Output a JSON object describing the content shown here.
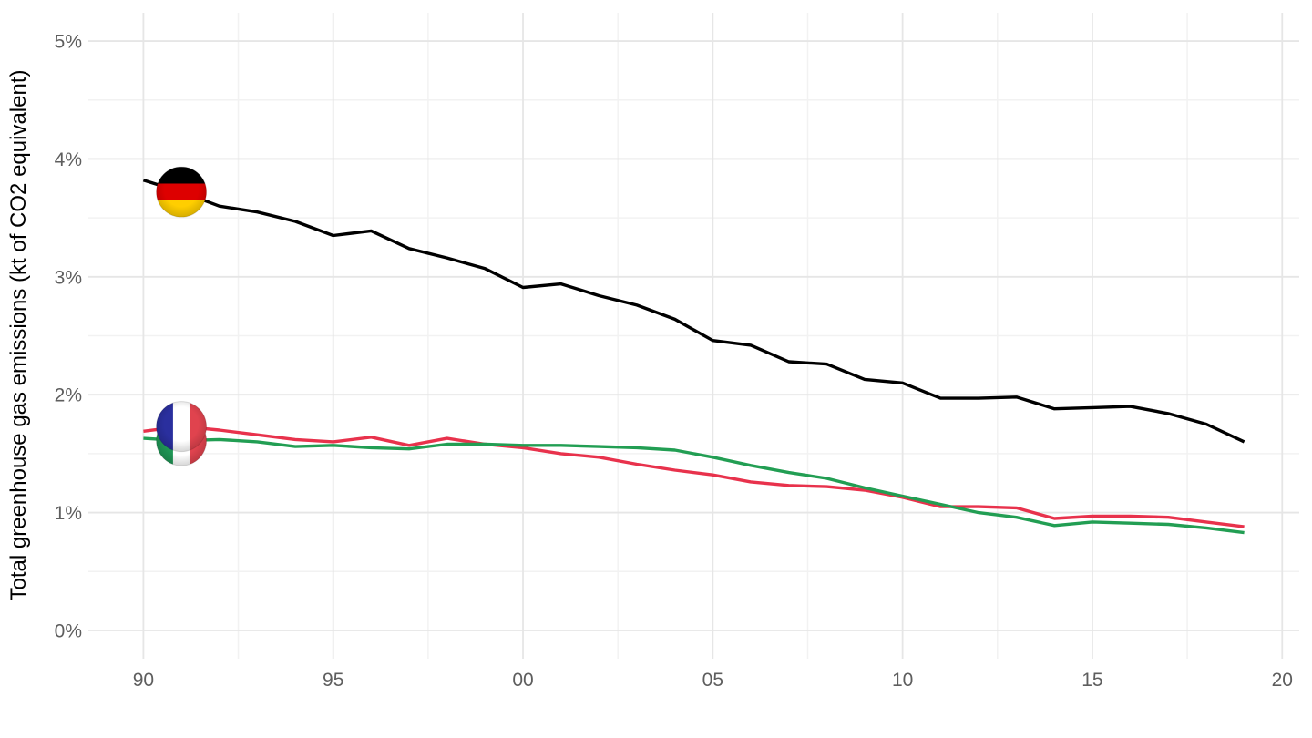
{
  "chart_data": {
    "type": "line",
    "title": "",
    "xlabel": "",
    "ylabel": "Total greenhouse gas emissions (kt of CO2 equivalent)",
    "x": [
      1990,
      1991,
      1992,
      1993,
      1994,
      1995,
      1996,
      1997,
      1998,
      1999,
      2000,
      2001,
      2002,
      2003,
      2004,
      2005,
      2006,
      2007,
      2008,
      2009,
      2010,
      2011,
      2012,
      2013,
      2014,
      2015,
      2016,
      2017,
      2018,
      2019
    ],
    "series": [
      {
        "name": "Germany",
        "color": "#000000",
        "flag": "de",
        "flag_year": 1991,
        "values": [
          3.82,
          3.72,
          3.6,
          3.55,
          3.47,
          3.35,
          3.39,
          3.24,
          3.16,
          3.07,
          2.91,
          2.94,
          2.84,
          2.76,
          2.64,
          2.46,
          2.42,
          2.28,
          2.26,
          2.13,
          2.1,
          1.97,
          1.97,
          1.98,
          1.88,
          1.89,
          1.9,
          1.84,
          1.75,
          1.6
        ]
      },
      {
        "name": "France",
        "color": "#E8324C",
        "flag": "fr",
        "flag_year": 1991,
        "values": [
          1.69,
          1.73,
          1.7,
          1.66,
          1.62,
          1.6,
          1.64,
          1.57,
          1.63,
          1.58,
          1.55,
          1.5,
          1.47,
          1.41,
          1.36,
          1.32,
          1.26,
          1.23,
          1.22,
          1.19,
          1.13,
          1.05,
          1.05,
          1.04,
          0.95,
          0.97,
          0.97,
          0.96,
          0.92,
          0.88
        ]
      },
      {
        "name": "Italy",
        "color": "#229E53",
        "flag": "it",
        "flag_year": 1991,
        "values": [
          1.63,
          1.61,
          1.62,
          1.6,
          1.56,
          1.57,
          1.55,
          1.54,
          1.58,
          1.58,
          1.57,
          1.57,
          1.56,
          1.55,
          1.53,
          1.47,
          1.4,
          1.34,
          1.29,
          1.21,
          1.14,
          1.07,
          1.0,
          0.96,
          0.89,
          0.92,
          0.91,
          0.9,
          0.87,
          0.83
        ]
      }
    ],
    "x_ticks": [
      1990,
      1995,
      2000,
      2005,
      2010,
      2015,
      2020
    ],
    "x_tick_labels": [
      "90",
      "95",
      "00",
      "05",
      "10",
      "15",
      "20"
    ],
    "x_minor_ticks": [
      1992.5,
      1997.5,
      2002.5,
      2007.5,
      2012.5,
      2017.5
    ],
    "y_ticks": [
      0,
      1,
      2,
      3,
      4,
      5
    ],
    "y_tick_labels": [
      "0%",
      "1%",
      "2%",
      "3%",
      "4%",
      "5%"
    ],
    "y_minor_ticks": [
      0.5,
      1.5,
      2.5,
      3.5,
      4.5
    ],
    "xlim": [
      1988.55,
      2020.45
    ],
    "ylim": [
      -0.24,
      5.24
    ],
    "grid": "major+minor",
    "legend": "none (round flag markers on lines at 1991)"
  },
  "style": {
    "background": "#ffffff",
    "grid_major_color": "#e6e6e6",
    "grid_minor_color": "#f2f2f2",
    "tick_label_color": "#5e5e5e",
    "axis_title_color": "#000000",
    "line_width": 3.4
  },
  "flags": {
    "de": {
      "layout": "horizontal",
      "colors": [
        "#000000",
        "#DD0000",
        "#FFCE00"
      ]
    },
    "fr": {
      "layout": "vertical",
      "colors": [
        "#2A2F9E",
        "#FFFFFF",
        "#E0434E"
      ]
    },
    "it": {
      "layout": "vertical",
      "colors": [
        "#1F9655",
        "#FFFFFF",
        "#E0434E"
      ]
    }
  }
}
